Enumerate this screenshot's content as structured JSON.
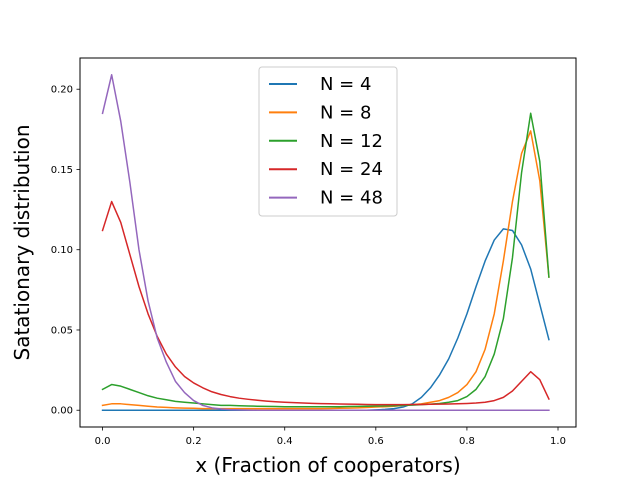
{
  "chart_data": {
    "type": "line",
    "xlabel": "x (Fraction of cooperators)",
    "ylabel": "Satationary distribution",
    "xlim": [
      -0.0495,
      1.0395
    ],
    "ylim": [
      -0.01045,
      0.21945
    ],
    "xticks": [
      0.0,
      0.2,
      0.4,
      0.6,
      0.8,
      1.0
    ],
    "xtick_labels": [
      "0.0",
      "0.2",
      "0.4",
      "0.6",
      "0.8",
      "1.0"
    ],
    "yticks": [
      0.0,
      0.05,
      0.1,
      0.15,
      0.2
    ],
    "ytick_labels": [
      "0.00",
      "0.05",
      "0.10",
      "0.15",
      "0.20"
    ],
    "grid": false,
    "legend_position": "upper center",
    "x": [
      0.0,
      0.02,
      0.04,
      0.06,
      0.08,
      0.1,
      0.12,
      0.14,
      0.16,
      0.18,
      0.2,
      0.22,
      0.24,
      0.26,
      0.28,
      0.3,
      0.32,
      0.34,
      0.36,
      0.38,
      0.4,
      0.42,
      0.44,
      0.46,
      0.48,
      0.5,
      0.52,
      0.54,
      0.56,
      0.58,
      0.6,
      0.62,
      0.64,
      0.66,
      0.68,
      0.7,
      0.72,
      0.74,
      0.76,
      0.78,
      0.8,
      0.82,
      0.84,
      0.86,
      0.88,
      0.9,
      0.92,
      0.94,
      0.96,
      0.98
    ],
    "series": [
      {
        "name": "N = 4",
        "color": "#1f77b4",
        "values": [
          0,
          0,
          0,
          0,
          0,
          0,
          0,
          0,
          0,
          0,
          0,
          0,
          0,
          0,
          0,
          0,
          0,
          0,
          0,
          0,
          0,
          0,
          0,
          0,
          0,
          0,
          0,
          0,
          0,
          0,
          0.0002,
          0.0005,
          0.001,
          0.002,
          0.004,
          0.008,
          0.014,
          0.022,
          0.032,
          0.045,
          0.06,
          0.077,
          0.093,
          0.106,
          0.113,
          0.112,
          0.103,
          0.088,
          0.066,
          0.044
        ]
      },
      {
        "name": "N = 8",
        "color": "#ff7f0e",
        "values": [
          0.003,
          0.004,
          0.004,
          0.0035,
          0.003,
          0.0025,
          0.002,
          0.0018,
          0.0015,
          0.0013,
          0.0012,
          0.001,
          0.001,
          0.001,
          0.001,
          0.001,
          0.001,
          0.001,
          0.001,
          0.001,
          0.001,
          0.001,
          0.001,
          0.001,
          0.001,
          0.0011,
          0.0012,
          0.0013,
          0.0015,
          0.0017,
          0.002,
          0.0022,
          0.0025,
          0.003,
          0.0035,
          0.004,
          0.005,
          0.006,
          0.008,
          0.011,
          0.016,
          0.024,
          0.038,
          0.06,
          0.093,
          0.13,
          0.16,
          0.174,
          0.143,
          0.083
        ]
      },
      {
        "name": "N = 12",
        "color": "#2ca02c",
        "values": [
          0.013,
          0.016,
          0.015,
          0.013,
          0.011,
          0.009,
          0.0075,
          0.0065,
          0.0055,
          0.005,
          0.0045,
          0.004,
          0.0035,
          0.003,
          0.003,
          0.0028,
          0.0026,
          0.0025,
          0.0024,
          0.0023,
          0.0022,
          0.0022,
          0.0022,
          0.0022,
          0.0022,
          0.0022,
          0.0022,
          0.0023,
          0.0024,
          0.0025,
          0.0026,
          0.0027,
          0.0028,
          0.003,
          0.0032,
          0.0035,
          0.0038,
          0.0042,
          0.005,
          0.006,
          0.0085,
          0.013,
          0.021,
          0.035,
          0.057,
          0.095,
          0.148,
          0.185,
          0.155,
          0.083
        ]
      },
      {
        "name": "N = 24",
        "color": "#d62728",
        "values": [
          0.112,
          0.13,
          0.117,
          0.097,
          0.077,
          0.06,
          0.046,
          0.035,
          0.027,
          0.021,
          0.017,
          0.014,
          0.0115,
          0.0098,
          0.0085,
          0.0075,
          0.0068,
          0.0062,
          0.0057,
          0.0053,
          0.005,
          0.0047,
          0.0045,
          0.0043,
          0.0041,
          0.004,
          0.0039,
          0.0038,
          0.0037,
          0.0036,
          0.0035,
          0.0035,
          0.0035,
          0.0035,
          0.0036,
          0.0036,
          0.0037,
          0.0038,
          0.0039,
          0.004,
          0.0042,
          0.0045,
          0.005,
          0.006,
          0.008,
          0.012,
          0.018,
          0.024,
          0.019,
          0.007
        ]
      },
      {
        "name": "N = 48",
        "color": "#9467bd",
        "values": [
          0.185,
          0.209,
          0.18,
          0.142,
          0.1,
          0.068,
          0.045,
          0.03,
          0.018,
          0.011,
          0.006,
          0.003,
          0.0015,
          0.0008,
          0.0004,
          0.0002,
          0.0001,
          0,
          0,
          0,
          0,
          0,
          0,
          0,
          0,
          0,
          0,
          0,
          0,
          0,
          0,
          0,
          0,
          0,
          0,
          0,
          0,
          0,
          0,
          0,
          0,
          0,
          0,
          0,
          0,
          0,
          0,
          0,
          0,
          0
        ]
      }
    ]
  }
}
